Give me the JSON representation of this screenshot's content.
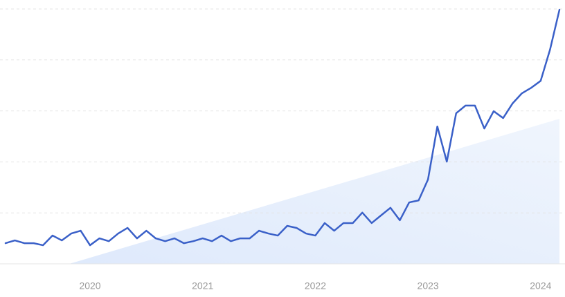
{
  "chart_data": {
    "type": "line",
    "x": [
      2019.25,
      2019.333,
      2019.417,
      2019.5,
      2019.583,
      2019.667,
      2019.75,
      2019.833,
      2019.917,
      2020,
      2020.083,
      2020.167,
      2020.25,
      2020.333,
      2020.417,
      2020.5,
      2020.583,
      2020.667,
      2020.75,
      2020.833,
      2020.917,
      2021,
      2021.083,
      2021.167,
      2021.25,
      2021.333,
      2021.417,
      2021.5,
      2021.583,
      2021.667,
      2021.75,
      2021.833,
      2021.917,
      2022,
      2022.083,
      2022.167,
      2022.25,
      2022.333,
      2022.417,
      2022.5,
      2022.583,
      2022.667,
      2022.75,
      2022.833,
      2022.917,
      2023,
      2023.083,
      2023.167,
      2023.25,
      2023.333,
      2023.417,
      2023.5,
      2023.583,
      2023.667,
      2023.75,
      2023.833,
      2023.917,
      2024,
      2024.083,
      2024.167
    ],
    "values": [
      8.1,
      9.2,
      8.1,
      8.1,
      7.3,
      11.1,
      9.2,
      11.9,
      13.0,
      7.3,
      10.0,
      8.9,
      11.9,
      14.1,
      10.0,
      13.0,
      10.0,
      8.9,
      10.0,
      8.1,
      8.9,
      10.0,
      8.9,
      11.1,
      8.9,
      10.0,
      10.0,
      13.0,
      11.9,
      11.1,
      14.9,
      14.1,
      11.9,
      11.1,
      16.0,
      13.0,
      16.0,
      16.0,
      20.1,
      16.0,
      19.0,
      22.0,
      17.1,
      24.1,
      24.9,
      33.1,
      53.9,
      40.1,
      59.1,
      62.1,
      62.1,
      53.1,
      59.9,
      57.2,
      62.9,
      66.9,
      69.1,
      71.8,
      84.0,
      99.7
    ],
    "color": "#3a60c8",
    "xlim": [
      2019.25,
      2024.167
    ],
    "xticks": [
      2020,
      2021,
      2022,
      2023,
      2024
    ],
    "ylim": [
      0,
      100
    ],
    "yticks": [
      0,
      20,
      40,
      60,
      80,
      100
    ],
    "grid": true
  }
}
